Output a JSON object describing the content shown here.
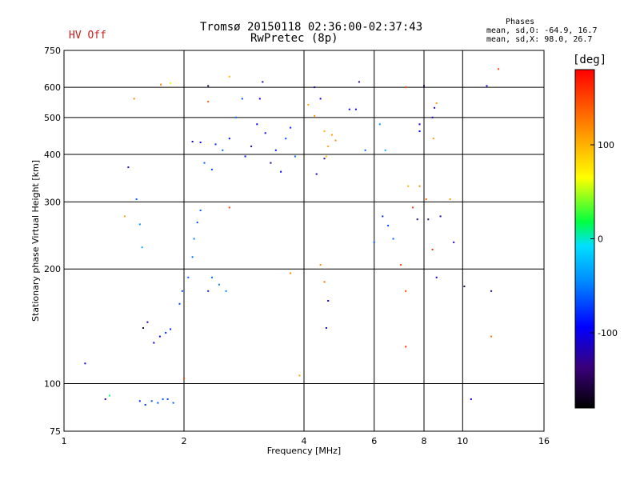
{
  "header": {
    "hv_status": "HV Off",
    "title_line1": "Tromsø 20150118 02:36:00-02:37:43",
    "title_line2": "RwPretec (8p)"
  },
  "phase_info": {
    "title": "Phases",
    "line_o": "mean, sd,O: -64.9, 16.7",
    "line_x": "mean, sd,X:  98.0, 26.7"
  },
  "colorbar": {
    "unit": "[deg]",
    "tick_values": [
      100,
      0,
      -100
    ],
    "tick_labels": [
      "100",
      "0",
      "-100"
    ],
    "range": [
      -180,
      180
    ]
  },
  "chart_data": {
    "type": "scatter",
    "xlabel": "Frequency [MHz]",
    "ylabel": "Stationary phase Virtual Height [km]",
    "xscale": "log",
    "yscale": "log",
    "xlim": [
      1,
      16
    ],
    "ylim": [
      75,
      750
    ],
    "x_ticks": [
      1,
      2,
      4,
      6,
      8,
      10,
      16
    ],
    "x_tick_labels": [
      "1",
      "2",
      "4",
      "6",
      "8",
      "10",
      "16"
    ],
    "y_ticks": [
      75,
      100,
      200,
      300,
      400,
      500,
      600,
      750
    ],
    "y_tick_labels": [
      "75",
      "100",
      "200",
      "300",
      "400",
      "500",
      "600",
      "750"
    ],
    "grid": true,
    "points": [
      [
        1.27,
        91,
        -120
      ],
      [
        1.3,
        93,
        10
      ],
      [
        1.13,
        113,
        -95
      ],
      [
        1.55,
        90,
        -80
      ],
      [
        1.6,
        88,
        -75
      ],
      [
        1.66,
        90,
        -70
      ],
      [
        1.72,
        89,
        -65
      ],
      [
        1.77,
        91,
        -60
      ],
      [
        1.82,
        91,
        -70
      ],
      [
        1.88,
        89,
        -60
      ],
      [
        1.58,
        140,
        -150
      ],
      [
        1.62,
        145,
        -120
      ],
      [
        1.68,
        128,
        -100
      ],
      [
        1.74,
        133,
        -90
      ],
      [
        1.8,
        136,
        -80
      ],
      [
        1.85,
        139,
        -85
      ],
      [
        1.95,
        162,
        -70
      ],
      [
        1.98,
        175,
        -65
      ],
      [
        2.05,
        190,
        -60
      ],
      [
        2.1,
        215,
        -55
      ],
      [
        2.12,
        240,
        -50
      ],
      [
        2.16,
        265,
        -70
      ],
      [
        2.2,
        285,
        -60
      ],
      [
        2.3,
        175,
        -80
      ],
      [
        2.35,
        190,
        -60
      ],
      [
        2.45,
        182,
        -50
      ],
      [
        2.55,
        175,
        -45
      ],
      [
        2.1,
        432,
        -110
      ],
      [
        2.2,
        430,
        -90
      ],
      [
        2.25,
        380,
        -60
      ],
      [
        2.35,
        365,
        -70
      ],
      [
        2.4,
        425,
        -80
      ],
      [
        2.5,
        410,
        -60
      ],
      [
        2.6,
        440,
        -90
      ],
      [
        2.7,
        500,
        -60
      ],
      [
        2.8,
        560,
        -70
      ],
      [
        2.85,
        395,
        -90
      ],
      [
        2.95,
        420,
        -120
      ],
      [
        3.05,
        480,
        -100
      ],
      [
        3.1,
        560,
        -110
      ],
      [
        3.15,
        620,
        -120
      ],
      [
        3.2,
        455,
        -100
      ],
      [
        3.3,
        380,
        -120
      ],
      [
        3.4,
        410,
        -90
      ],
      [
        3.5,
        360,
        -100
      ],
      [
        3.6,
        440,
        -70
      ],
      [
        3.7,
        470,
        -80
      ],
      [
        3.8,
        395,
        -60
      ],
      [
        4.1,
        540,
        100
      ],
      [
        4.25,
        505,
        110
      ],
      [
        4.5,
        460,
        100
      ],
      [
        4.55,
        395,
        95
      ],
      [
        4.6,
        420,
        105
      ],
      [
        4.7,
        450,
        110
      ],
      [
        4.8,
        435,
        120
      ],
      [
        4.25,
        600,
        -130
      ],
      [
        4.4,
        560,
        -100
      ],
      [
        4.5,
        390,
        -120
      ],
      [
        4.3,
        355,
        -110
      ],
      [
        3.7,
        195,
        120
      ],
      [
        3.9,
        105,
        110
      ],
      [
        4.4,
        205,
        120
      ],
      [
        4.5,
        185,
        130
      ],
      [
        4.55,
        140,
        -90
      ],
      [
        4.6,
        165,
        -100
      ],
      [
        6.0,
        235,
        -60
      ],
      [
        6.3,
        275,
        -80
      ],
      [
        6.5,
        260,
        -70
      ],
      [
        6.7,
        240,
        -60
      ],
      [
        7.0,
        205,
        150
      ],
      [
        7.2,
        175,
        145
      ],
      [
        7.2,
        125,
        160
      ],
      [
        7.5,
        290,
        150
      ],
      [
        7.7,
        270,
        -120
      ],
      [
        8.2,
        270,
        -130
      ],
      [
        8.4,
        225,
        160
      ],
      [
        8.6,
        190,
        -100
      ],
      [
        8.8,
        275,
        -120
      ],
      [
        8.4,
        500,
        -110
      ],
      [
        8.5,
        530,
        -120
      ],
      [
        8.45,
        440,
        110
      ],
      [
        8.6,
        545,
        110
      ],
      [
        7.8,
        460,
        -100
      ],
      [
        7.8,
        480,
        -110
      ],
      [
        7.3,
        330,
        100
      ],
      [
        7.8,
        330,
        120
      ],
      [
        8.1,
        305,
        130
      ],
      [
        9.3,
        305,
        110
      ],
      [
        9.5,
        235,
        -120
      ],
      [
        10.1,
        180,
        -150
      ],
      [
        10.5,
        91,
        -110
      ],
      [
        11.8,
        175,
        -130
      ],
      [
        11.5,
        605,
        -100
      ],
      [
        12.3,
        670,
        150
      ],
      [
        11.8,
        133,
        130
      ],
      [
        1.45,
        370,
        -120
      ],
      [
        1.5,
        560,
        120
      ],
      [
        1.52,
        305,
        -60
      ],
      [
        1.55,
        262,
        -40
      ],
      [
        1.57,
        228,
        -30
      ],
      [
        1.42,
        275,
        110
      ],
      [
        1.75,
        610,
        120
      ],
      [
        1.85,
        615,
        60
      ],
      [
        2.0,
        103,
        150
      ],
      [
        2.3,
        605,
        -150
      ],
      [
        2.3,
        550,
        140
      ],
      [
        2.6,
        640,
        100
      ],
      [
        2.6,
        290,
        150
      ],
      [
        5.5,
        620,
        -130
      ],
      [
        5.4,
        525,
        -110
      ],
      [
        5.2,
        525,
        -100
      ],
      [
        5.7,
        410,
        -60
      ],
      [
        6.2,
        480,
        -40
      ],
      [
        6.4,
        410,
        -30
      ],
      [
        7.2,
        600,
        150
      ],
      [
        8.0,
        605,
        -150
      ]
    ]
  }
}
